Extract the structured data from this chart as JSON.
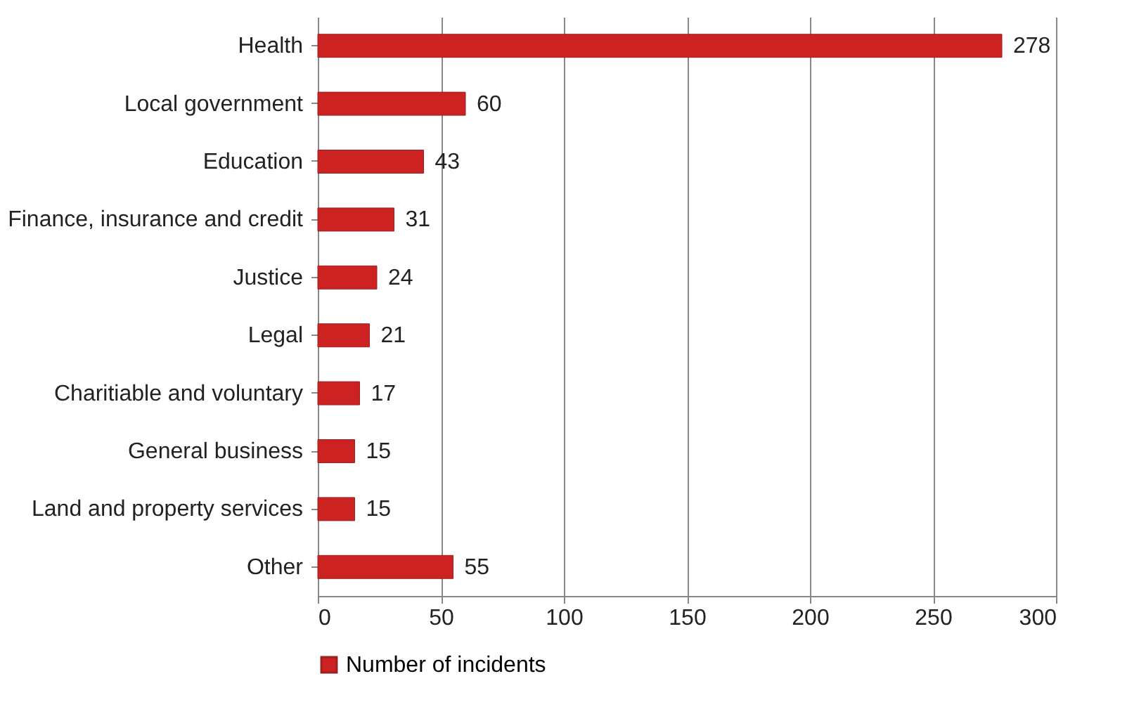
{
  "chart_data": {
    "type": "bar",
    "orientation": "horizontal",
    "categories": [
      "Health",
      "Local government",
      "Education",
      "Finance, insurance and credit",
      "Justice",
      "Legal",
      "Charitiable and voluntary",
      "General business",
      "Land and property services",
      "Other"
    ],
    "series": [
      {
        "name": "Number of incidents",
        "color": "#cc2222",
        "values": [
          278,
          60,
          43,
          31,
          24,
          21,
          17,
          15,
          15,
          55
        ]
      }
    ],
    "xlim": [
      0,
      300
    ],
    "xticks": [
      0,
      50,
      100,
      150,
      200,
      250,
      300
    ],
    "grid": "x",
    "legend": "bottom",
    "data_labels": true
  }
}
